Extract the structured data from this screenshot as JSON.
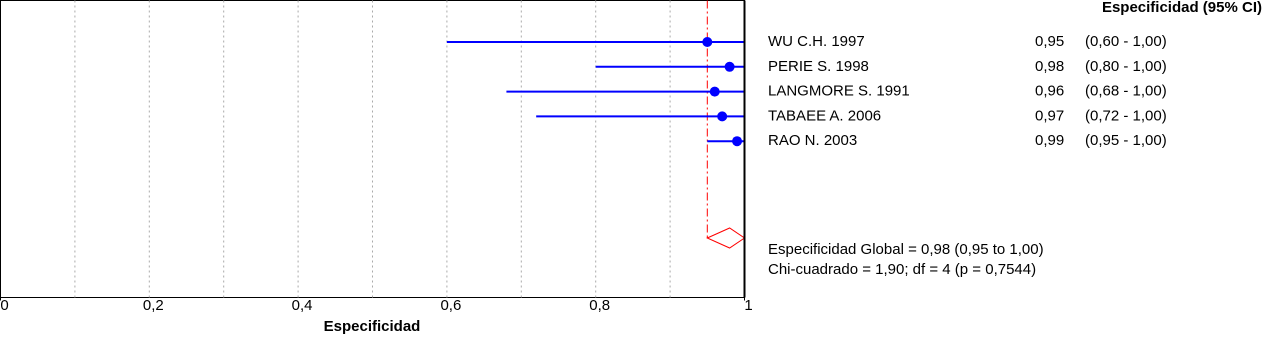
{
  "chart_data": {
    "type": "forest",
    "header": "Especificidad (95% CI)",
    "xlabel": "Especificidad",
    "xlim": [
      0,
      1
    ],
    "xticks": [
      0,
      {
        "value": 0.2,
        "label": "0,2"
      },
      {
        "value": 0.4,
        "label": "0,4"
      },
      {
        "value": 0.6,
        "label": "0,6"
      },
      {
        "value": 0.8,
        "label": "0,8"
      },
      1
    ],
    "xticks_minor": [
      0.1,
      0.3,
      0.5,
      0.7,
      0.9
    ],
    "color": "#0000ff",
    "pooled_color": "#ff0000",
    "categories": [
      "WU C.H. 1997",
      "PERIE S. 1998",
      "LANGMORE S. 1991",
      "TABAEE A. 2006",
      "RAO N. 2003"
    ],
    "values": [
      0.95,
      0.98,
      0.96,
      0.97,
      0.99
    ],
    "value_labels": [
      "0,95",
      "0,98",
      "0,96",
      "0,97",
      "0,99"
    ],
    "lower": [
      0.6,
      0.8,
      0.68,
      0.72,
      0.95
    ],
    "upper": [
      1.0,
      1.0,
      1.0,
      1.0,
      1.0
    ],
    "ci_labels": [
      "(0,60 - 1,00)",
      "(0,80 - 1,00)",
      "(0,68 - 1,00)",
      "(0,72 - 1,00)",
      "(0,95 - 1,00)"
    ],
    "pooled": {
      "value": 0.98,
      "lower": 0.95,
      "upper": 1.0
    },
    "annotations": [
      "Especificidad Global = 0,98 (0,95 to 1,00)",
      "Chi-cuadrado = 1,90; df =  4 (p = 0,7544)"
    ]
  }
}
